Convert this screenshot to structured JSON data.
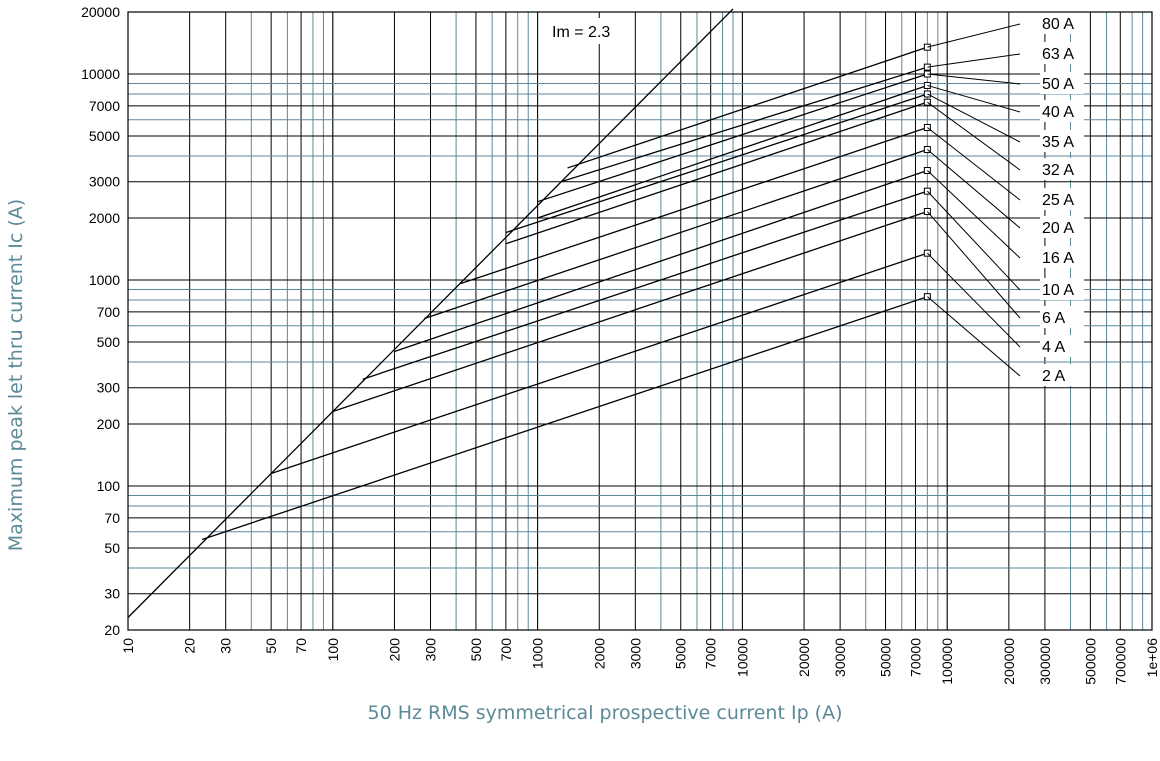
{
  "chart_data": {
    "type": "line",
    "xlabel": "50 Hz RMS symmetrical prospective current Ip (A)",
    "ylabel": "Maximum peak let thru current Ic (A)",
    "x_scale": "log",
    "y_scale": "log",
    "xlim": [
      10,
      1000000
    ],
    "ylim": [
      20,
      20000
    ],
    "grid": true,
    "x_ticks": [
      "10",
      "20",
      "30",
      "50",
      "70",
      "100",
      "200",
      "300",
      "500",
      "700",
      "1000",
      "2000",
      "3000",
      "5000",
      "7000",
      "10000",
      "20000",
      "30000",
      "50000",
      "70000",
      "100000",
      "200000",
      "300000",
      "500000",
      "700000",
      "1e+06"
    ],
    "y_ticks": [
      "20",
      "30",
      "50",
      "70",
      "100",
      "200",
      "300",
      "500",
      "700",
      "1000",
      "2000",
      "3000",
      "5000",
      "7000",
      "10000",
      "20000"
    ],
    "annotation": "Im = 2.3",
    "colors": {
      "axis": "#000000",
      "grid_major": "#000000",
      "grid_minor": "#5b8a98",
      "title": "#5b8a98"
    },
    "reference_line": {
      "name": "",
      "x": [
        10,
        9000
      ],
      "y": [
        23,
        20700
      ]
    },
    "series": [
      {
        "name": "80 A",
        "x": [
          1400,
          80000
        ],
        "y": [
          3500,
          13500
        ]
      },
      {
        "name": "63 A",
        "x": [
          1300,
          80000
        ],
        "y": [
          3000,
          10800
        ]
      },
      {
        "name": "50 A",
        "x": [
          1000,
          80000
        ],
        "y": [
          2400,
          10000
        ]
      },
      {
        "name": "40 A",
        "x": [
          1000,
          80000
        ],
        "y": [
          2000,
          8800
        ]
      },
      {
        "name": "35 A",
        "x": [
          700,
          80000
        ],
        "y": [
          1700,
          8000
        ]
      },
      {
        "name": "32 A",
        "x": [
          700,
          80000
        ],
        "y": [
          1500,
          7300
        ]
      },
      {
        "name": "25 A",
        "x": [
          420,
          80000
        ],
        "y": [
          960,
          5500
        ]
      },
      {
        "name": "20 A",
        "x": [
          280,
          80000
        ],
        "y": [
          650,
          4300
        ]
      },
      {
        "name": "16 A",
        "x": [
          200,
          80000
        ],
        "y": [
          450,
          3400
        ]
      },
      {
        "name": "10 A",
        "x": [
          140,
          80000
        ],
        "y": [
          330,
          2700
        ]
      },
      {
        "name": "6 A",
        "x": [
          100,
          80000
        ],
        "y": [
          230,
          2150
        ]
      },
      {
        "name": "4 A",
        "x": [
          50,
          80000
        ],
        "y": [
          115,
          1350
        ]
      },
      {
        "name": "2 A",
        "x": [
          23,
          80000
        ],
        "y": [
          55,
          830
        ]
      }
    ]
  }
}
